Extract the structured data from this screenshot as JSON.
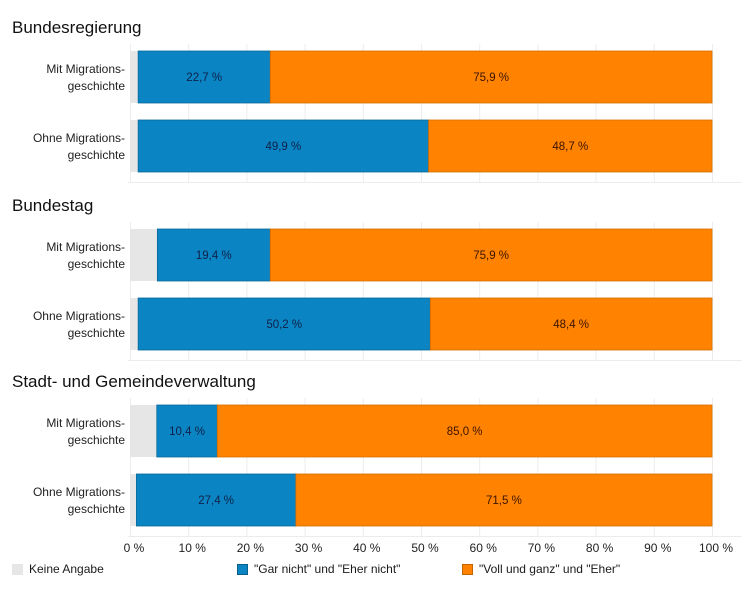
{
  "chart_data": {
    "type": "bar",
    "orientation": "horizontal",
    "stacked": true,
    "title": "",
    "xlabel": "",
    "ylabel": "",
    "xlim": [
      0,
      100
    ],
    "x_ticks": [
      "0 %",
      "10 %",
      "20 %",
      "30 %",
      "40 %",
      "50 %",
      "60 %",
      "70 %",
      "80 %",
      "90 %",
      "100 %"
    ],
    "grid": true,
    "legend_position": "bottom",
    "series": [
      {
        "key": "keine",
        "name": "Keine Angabe",
        "color": "#e6e6e6",
        "show_label": false
      },
      {
        "key": "nicht",
        "name": "\"Gar nicht\" und \"Eher nicht\"",
        "color": "#0a84c2",
        "label_color": "#10214a",
        "show_label": true
      },
      {
        "key": "voll",
        "name": "\"Voll und ganz\" und \"Eher\"",
        "color": "#ff8300",
        "label_color": "#3a1200",
        "show_label": true
      }
    ],
    "panels": [
      {
        "title": "Bundesregierung",
        "rows": [
          {
            "label": [
              "Mit Migrations-",
              "geschichte"
            ],
            "values": {
              "keine": 1.4,
              "nicht": 22.7,
              "voll": 75.9
            },
            "labels": {
              "nicht": "22,7 %",
              "voll": "75,9 %"
            }
          },
          {
            "label": [
              "Ohne Migrations-",
              "geschichte"
            ],
            "values": {
              "keine": 1.4,
              "nicht": 49.9,
              "voll": 48.7
            },
            "labels": {
              "nicht": "49,9 %",
              "voll": "48,7 %"
            }
          }
        ]
      },
      {
        "title": "Bundestag",
        "rows": [
          {
            "label": [
              "Mit Migrations-",
              "geschichte"
            ],
            "values": {
              "keine": 4.7,
              "nicht": 19.4,
              "voll": 75.9
            },
            "labels": {
              "nicht": "19,4 %",
              "voll": "75,9 %"
            }
          },
          {
            "label": [
              "Ohne Migrations-",
              "geschichte"
            ],
            "values": {
              "keine": 1.4,
              "nicht": 50.2,
              "voll": 48.4
            },
            "labels": {
              "nicht": "50,2 %",
              "voll": "48,4 %"
            }
          }
        ]
      },
      {
        "title": "Stadt- und Gemeindeverwaltung",
        "rows": [
          {
            "label": [
              "Mit Migrations-",
              "geschichte"
            ],
            "values": {
              "keine": 4.6,
              "nicht": 10.4,
              "voll": 85.0
            },
            "labels": {
              "nicht": "10,4 %",
              "voll": "85,0 %"
            }
          },
          {
            "label": [
              "Ohne Migrations-",
              "geschichte"
            ],
            "values": {
              "keine": 1.1,
              "nicht": 27.4,
              "voll": 71.5
            },
            "labels": {
              "nicht": "27,4 %",
              "voll": "71,5 %"
            }
          }
        ]
      }
    ]
  },
  "legend": {
    "items": [
      {
        "label": "Keine Angabe",
        "color": "#e6e6e6"
      },
      {
        "label": "\"Gar nicht\" und \"Eher nicht\"",
        "color": "#0a84c2"
      },
      {
        "label": "\"Voll und ganz\" und \"Eher\"",
        "color": "#ff8300"
      }
    ]
  }
}
